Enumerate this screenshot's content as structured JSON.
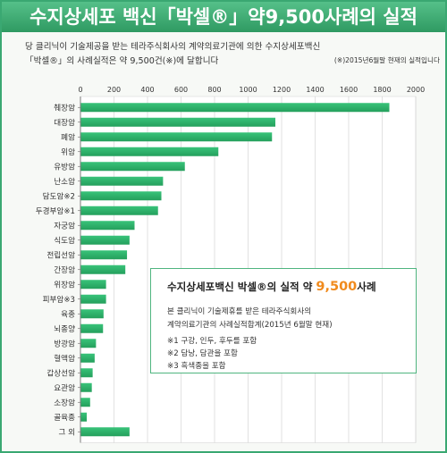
{
  "title": {
    "prefix": "수지상세포 백신「박셀®」약",
    "number": "9,500",
    "suffix": "사례의 실적"
  },
  "description": {
    "line1": "당 클리닉이 기술제공을 받는 테라주식회사의 계약의료기관에 의한 수지상세포백신",
    "line2": "「박셀®」의 사례실적은 약 9,500건(※)에 달합니다",
    "as_of": "(※)2015년6월말 현재의 실적입니다"
  },
  "info_box": {
    "title_before": "수지상세포백신 박셀®의 실적 약 ",
    "title_number": "9,500",
    "title_after": "사례",
    "body_line1": "본 클리닉이 기술제휴를 받은 테라주식회사의",
    "body_line2": "계약의료기관의 사례실적합계(2015년 6월말 현재)",
    "notes": [
      "※1 구강, 인두, 후두를 포함",
      "※2 담낭, 담관을 포함",
      "※3 흑색종을 포함"
    ]
  },
  "colors": {
    "bar": "#39c37a",
    "bar_dark": "#249f5c",
    "title_bg": "#3aa872",
    "grid": "#cfcfcf",
    "highlight": "#f08a1c"
  },
  "chart_data": {
    "type": "bar",
    "orientation": "horizontal",
    "categories": [
      "췌장암",
      "대장암",
      "폐암",
      "위암",
      "유방암",
      "난소암",
      "담도암※2",
      "두경부암※1",
      "자궁암",
      "식도암",
      "전립선암",
      "간장암",
      "위장암",
      "피부암※3",
      "육종",
      "뇌종양",
      "방광암",
      "혈액암",
      "갑상선암",
      "요관암",
      "소장암",
      "골육종",
      "그 외"
    ],
    "values": [
      1840,
      1160,
      1140,
      820,
      620,
      490,
      480,
      460,
      320,
      290,
      275,
      265,
      150,
      150,
      135,
      132,
      90,
      82,
      70,
      65,
      55,
      35,
      290
    ],
    "x_ticks": [
      0,
      200,
      400,
      600,
      800,
      1000,
      1200,
      1400,
      1600,
      1800,
      2000
    ],
    "xlim": [
      0,
      2000
    ],
    "grid": true
  }
}
